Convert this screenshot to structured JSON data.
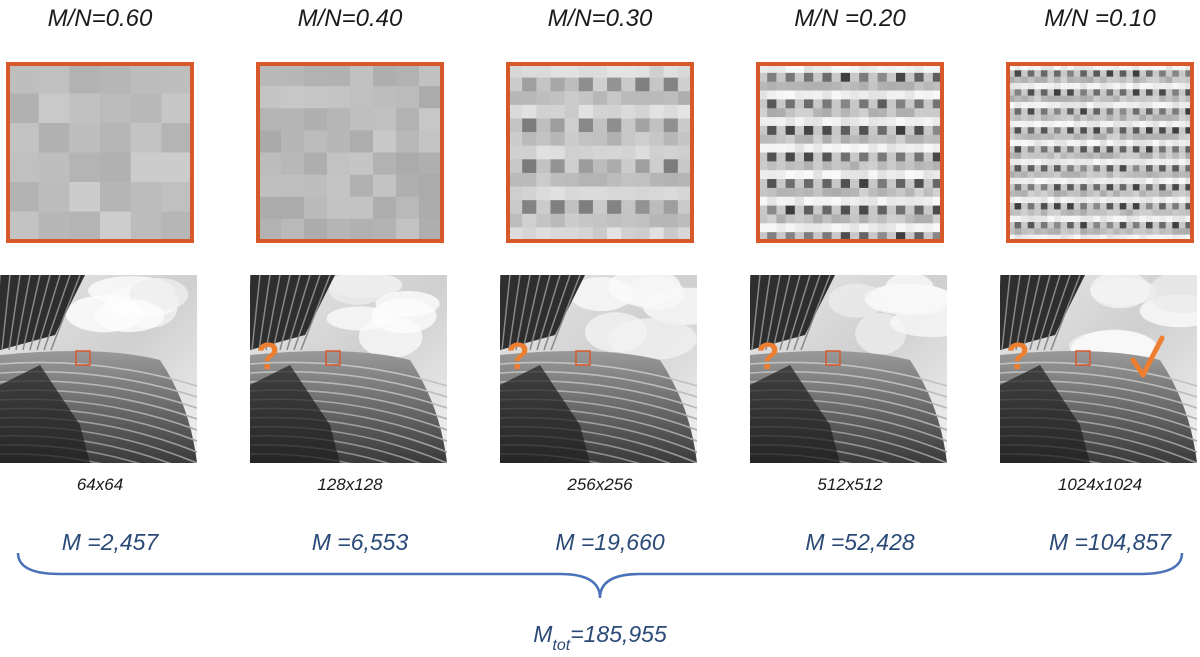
{
  "columns": [
    {
      "ratio": "M/N=0.60",
      "resolution": "64x64",
      "measurements": "M =2,457"
    },
    {
      "ratio": "M/N=0.40",
      "resolution": "128x128",
      "measurements": "M =6,553",
      "marker": "?"
    },
    {
      "ratio": "M/N=0.30",
      "resolution": "256x256",
      "measurements": "M =19,660",
      "marker": "?"
    },
    {
      "ratio": "M/N =0.20",
      "resolution": "512x512",
      "measurements": "M =52,428",
      "marker": "?"
    },
    {
      "ratio": "M/N =0.10",
      "resolution": "1024x1024",
      "measurements": "M =104,857",
      "marker": "?"
    }
  ],
  "total": {
    "symbol": "M",
    "subscript": "tot",
    "value": "=185,955"
  }
}
